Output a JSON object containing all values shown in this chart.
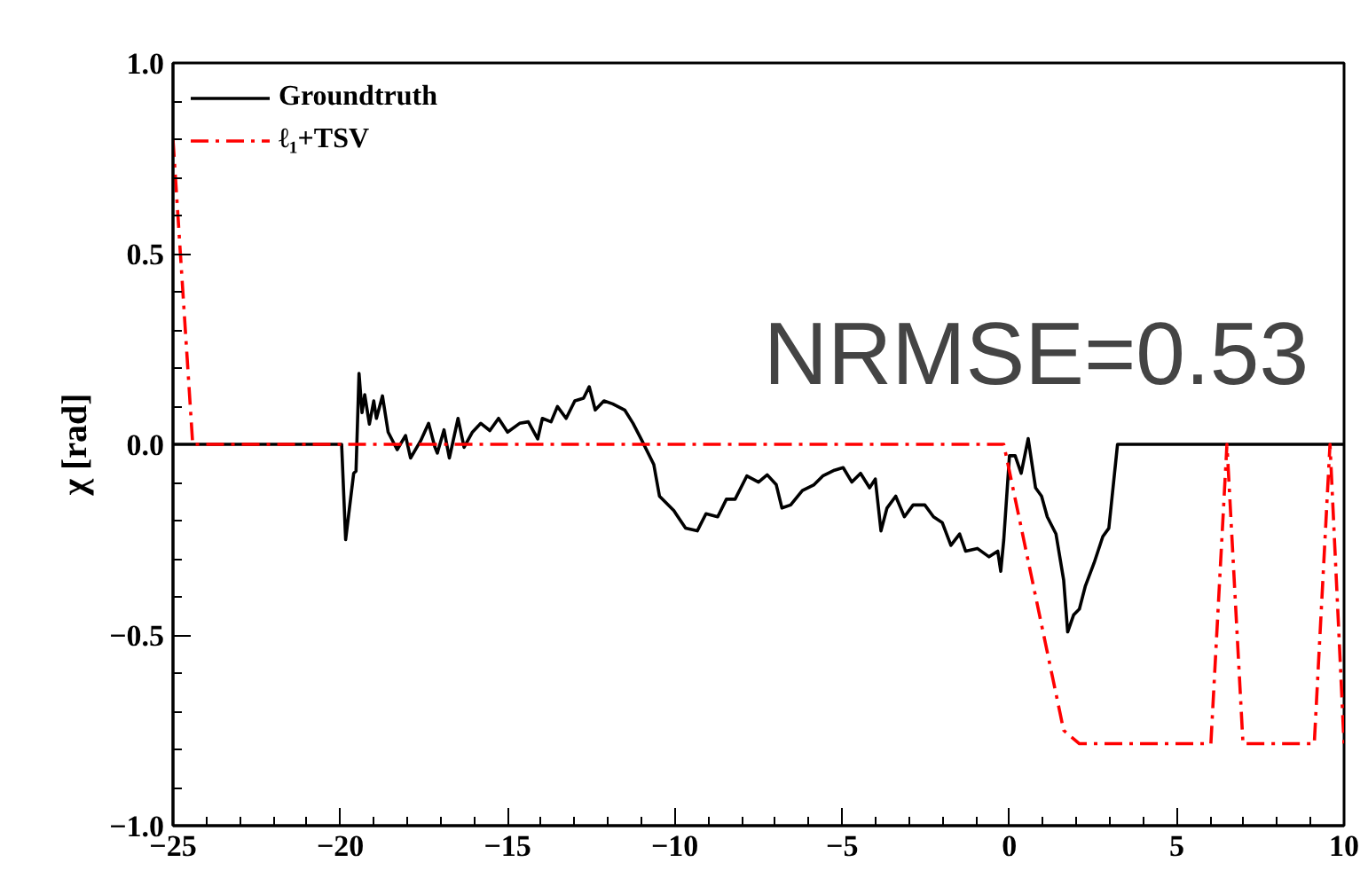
{
  "chart_data": {
    "type": "line",
    "ylabel": "χ [rad]",
    "xlim": [
      -25,
      10
    ],
    "ylim": [
      -1.0,
      1.0
    ],
    "xticks": [
      {
        "value": -25,
        "label": "−25"
      },
      {
        "value": -20,
        "label": "−20"
      },
      {
        "value": -15,
        "label": "−15"
      },
      {
        "value": -10,
        "label": "−10"
      },
      {
        "value": -5,
        "label": "−5"
      },
      0,
      5,
      10
    ],
    "yticks": [
      {
        "value": -1.0,
        "label": "−1.0"
      },
      {
        "value": -0.5,
        "label": "−0.5"
      },
      {
        "value": 0.0,
        "label": "0.0"
      },
      {
        "value": 0.5,
        "label": "0.5"
      },
      {
        "value": 1.0,
        "label": "1.0"
      }
    ],
    "grid": false,
    "legend": "top left",
    "annotations": [
      "NRMSE=0.53"
    ],
    "series": [
      {
        "name": "Groundtruth",
        "color": "#000000",
        "line_style": "solid",
        "x": [
          -25,
          -20.66,
          -19.96,
          -19.84,
          -19.6,
          -19.53,
          -19.44,
          -19.35,
          -19.27,
          -19.13,
          -19.0,
          -18.92,
          -18.74,
          -18.57,
          -18.3,
          -18.05,
          -17.9,
          -17.6,
          -17.36,
          -17.17,
          -17.1,
          -16.9,
          -16.74,
          -16.48,
          -16.3,
          -16.05,
          -15.8,
          -15.53,
          -15.27,
          -15.0,
          -14.64,
          -14.38,
          -14.1,
          -13.96,
          -13.7,
          -13.51,
          -13.25,
          -12.99,
          -12.73,
          -12.56,
          -12.38,
          -12.12,
          -11.86,
          -11.5,
          -11.25,
          -10.98,
          -10.63,
          -10.46,
          -10.03,
          -9.68,
          -9.33,
          -9.07,
          -8.72,
          -8.46,
          -8.2,
          -7.85,
          -7.5,
          -7.24,
          -6.97,
          -6.8,
          -6.54,
          -6.19,
          -5.84,
          -5.58,
          -5.23,
          -4.97,
          -4.71,
          -4.45,
          -4.18,
          -4.01,
          -3.84,
          -3.66,
          -3.4,
          -3.14,
          -2.88,
          -2.53,
          -2.27,
          -2.01,
          -1.75,
          -1.49,
          -1.31,
          -0.96,
          -0.61,
          -0.35,
          -0.26,
          -0.17,
          0.0,
          0.17,
          0.35,
          0.56,
          0.78,
          0.96,
          1.13,
          1.39,
          1.62,
          1.74,
          1.92,
          2.09,
          2.27,
          2.53,
          2.79,
          2.97,
          3.23,
          10
        ],
        "values": [
          0,
          0,
          0,
          -0.25,
          -0.076,
          -0.07,
          0.186,
          0.083,
          0.13,
          0.053,
          0.114,
          0.068,
          0.127,
          0.032,
          -0.014,
          0.023,
          -0.036,
          0.009,
          0.055,
          -0.008,
          -0.023,
          0.038,
          -0.036,
          0.068,
          -0.008,
          0.032,
          0.055,
          0.036,
          0.068,
          0.032,
          0.055,
          0.059,
          0.014,
          0.068,
          0.059,
          0.099,
          0.068,
          0.114,
          0.121,
          0.151,
          0.09,
          0.114,
          0.106,
          0.09,
          0.055,
          0.009,
          -0.053,
          -0.136,
          -0.174,
          -0.22,
          -0.227,
          -0.182,
          -0.19,
          -0.144,
          -0.144,
          -0.083,
          -0.099,
          -0.08,
          -0.106,
          -0.167,
          -0.159,
          -0.121,
          -0.106,
          -0.083,
          -0.068,
          -0.061,
          -0.099,
          -0.076,
          -0.114,
          -0.091,
          -0.227,
          -0.167,
          -0.136,
          -0.19,
          -0.159,
          -0.159,
          -0.19,
          -0.205,
          -0.265,
          -0.235,
          -0.28,
          -0.273,
          -0.295,
          -0.28,
          -0.333,
          -0.25,
          -0.03,
          -0.03,
          -0.076,
          0.015,
          -0.114,
          -0.136,
          -0.19,
          -0.235,
          -0.356,
          -0.492,
          -0.447,
          -0.432,
          -0.371,
          -0.311,
          -0.242,
          -0.22,
          0,
          0
        ]
      },
      {
        "name": "ℓ₁+TSV",
        "color": "#ff0000",
        "line_style": "dashdot",
        "x": [
          -25,
          -24.41,
          -0.17,
          1.62,
          2.09,
          6.02,
          6.5,
          6.98,
          9.11,
          9.58,
          10
        ],
        "values": [
          0.8,
          0,
          0,
          -0.75,
          -0.785,
          -0.785,
          0,
          -0.785,
          -0.785,
          0,
          -0.785
        ]
      }
    ]
  }
}
